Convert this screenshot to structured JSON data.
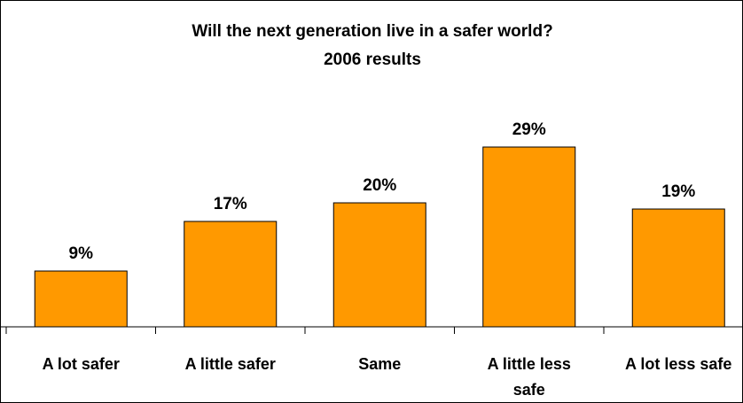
{
  "chart_data": {
    "type": "bar",
    "title": "Will the next generation live in a safer world?",
    "subtitle": "2006 results",
    "categories": [
      [
        "A lot safer"
      ],
      [
        "A little safer"
      ],
      [
        "Same"
      ],
      [
        "A little less",
        "safe"
      ],
      [
        "A lot less safe"
      ]
    ],
    "values": [
      9,
      17,
      20,
      29,
      19
    ],
    "data_labels": [
      "9%",
      "17%",
      "20%",
      "29%",
      "19%"
    ],
    "ylim": [
      0,
      36
    ],
    "grid": false,
    "legend": "none",
    "bar_color": "#FF9900",
    "bar_outline": "#000000"
  }
}
